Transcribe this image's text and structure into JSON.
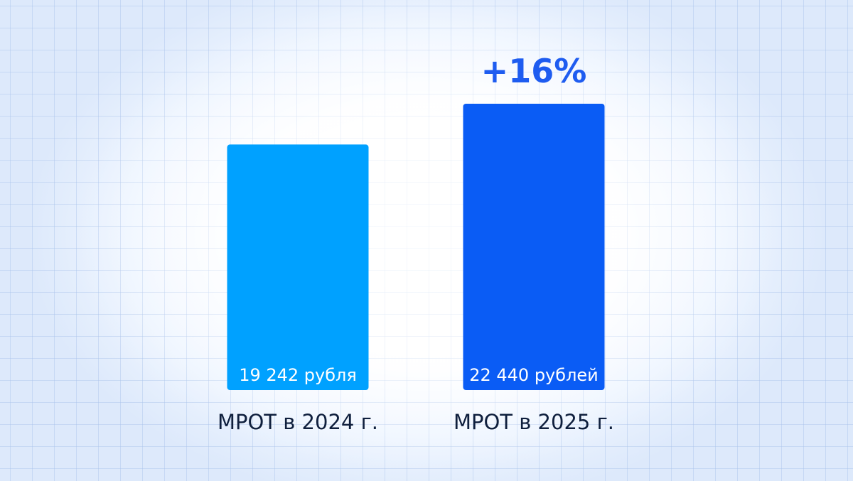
{
  "chart_data": {
    "type": "bar",
    "categories": [
      "МРОТ в 2024 г.",
      "МРОТ в 2025 г."
    ],
    "values": [
      19242,
      22440
    ],
    "value_labels": [
      "19 242 рубля",
      "22 440 рублей"
    ],
    "annotation": "+16%",
    "title": "",
    "xlabel": "",
    "ylabel": "",
    "grid": false,
    "legend": "none"
  },
  "colors": {
    "bar_2024": "#00a1ff",
    "bar_2025": "#0a5cf5",
    "annotation": "#1e5cf0",
    "category_text": "#0f1f3d",
    "value_text": "#ffffff"
  }
}
